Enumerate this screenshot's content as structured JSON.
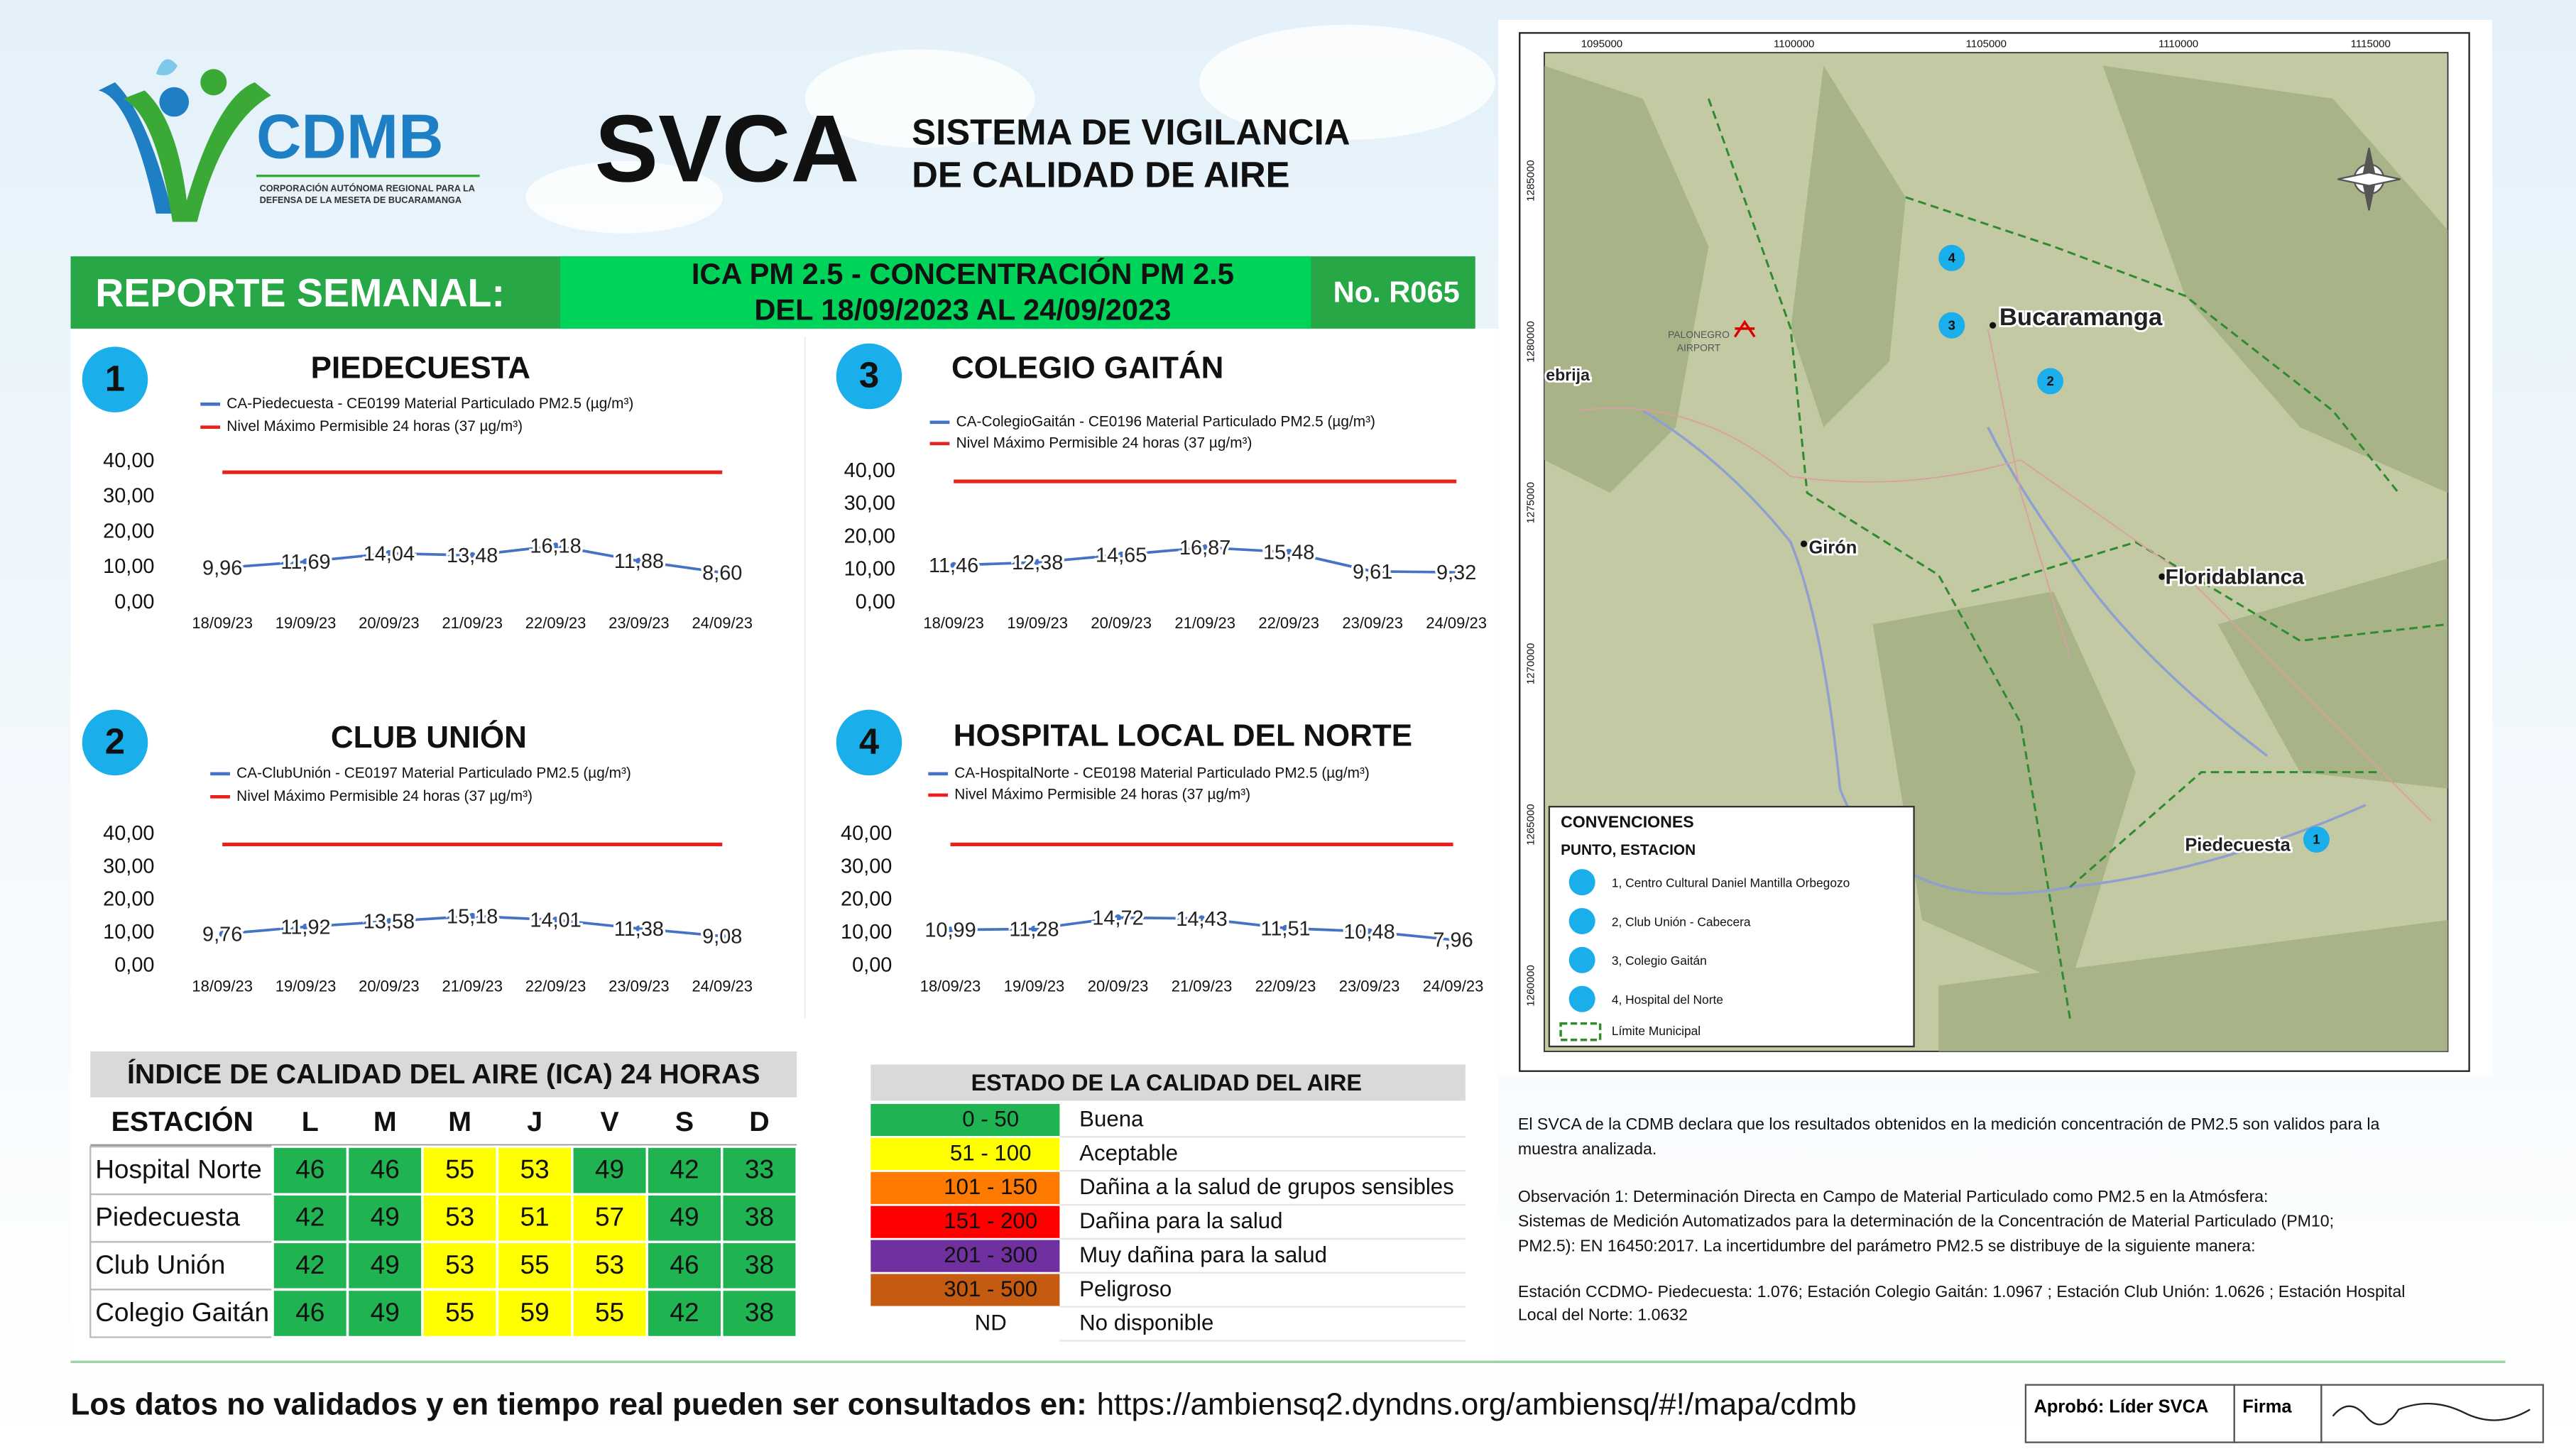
{
  "header": {
    "logo": "CDMB",
    "logo_sub": [
      "CORPORACIÓN AUTÓNOMA REGIONAL PARA LA",
      "DEFENSA DE LA MESETA DE BUCARAMANGA"
    ],
    "acronym": "SVCA",
    "system": [
      "SISTEMA DE VIGILANCIA",
      "DE CALIDAD DE AIRE"
    ],
    "report": "REPORTE SEMANAL:",
    "subject": [
      "ICA PM 2.5 - CONCENTRACIÓN PM 2.5",
      "DEL 18/09/2023 AL 24/09/2023"
    ],
    "number": "No. R065"
  },
  "chart_data": [
    {
      "type": "line",
      "number": "1",
      "title": "PIEDECUESTA",
      "categories": [
        "18/09/23",
        "19/09/23",
        "20/09/23",
        "21/09/23",
        "22/09/23",
        "23/09/23",
        "24/09/23"
      ],
      "series": [
        {
          "name": "CA-Piedecuesta - CE0199 Material Particulado PM2.5 (µg/m³)",
          "color": "#4472c4",
          "values": [
            9.96,
            11.69,
            14.04,
            13.48,
            16.18,
            11.88,
            8.6
          ],
          "value_labels": [
            "9,96",
            "11,69",
            "14,04",
            "13,48",
            "16,18",
            "11,88",
            "8,60"
          ]
        },
        {
          "name": "Nivel Máximo Permisible 24 horas (37 µg/m³)",
          "color": "#e8211b",
          "values": [
            37,
            37,
            37,
            37,
            37,
            37,
            37
          ]
        }
      ],
      "ylim": [
        0,
        40
      ],
      "yticks": [
        {
          "value": 0,
          "label": "0,00"
        },
        {
          "value": 10,
          "label": "10,00"
        },
        {
          "value": 20,
          "label": "20,00"
        },
        {
          "value": 30,
          "label": "30,00"
        },
        {
          "value": 40,
          "label": "40,00"
        }
      ]
    },
    {
      "type": "line",
      "number": "3",
      "title": "COLEGIO GAITÁN",
      "categories": [
        "18/09/23",
        "19/09/23",
        "20/09/23",
        "21/09/23",
        "22/09/23",
        "23/09/23",
        "24/09/23"
      ],
      "series": [
        {
          "name": "CA-ColegioGaitán - CE0196 Material Particulado PM2.5 (µg/m³)",
          "color": "#4472c4",
          "values": [
            11.46,
            12.38,
            14.65,
            16.87,
            15.48,
            9.61,
            9.32
          ],
          "value_labels": [
            "11,46",
            "12,38",
            "14,65",
            "16,87",
            "15,48",
            "9,61",
            "9,32"
          ]
        },
        {
          "name": "Nivel Máximo Permisible 24 horas (37 µg/m³)",
          "color": "#e8211b",
          "values": [
            37,
            37,
            37,
            37,
            37,
            37,
            37
          ]
        }
      ],
      "ylim": [
        0,
        40
      ],
      "yticks": [
        {
          "value": 0,
          "label": "0,00"
        },
        {
          "value": 10,
          "label": "10,00"
        },
        {
          "value": 20,
          "label": "20,00"
        },
        {
          "value": 30,
          "label": "30,00"
        },
        {
          "value": 40,
          "label": "40,00"
        }
      ]
    },
    {
      "type": "line",
      "number": "2",
      "title": "CLUB UNIÓN",
      "categories": [
        "18/09/23",
        "19/09/23",
        "20/09/23",
        "21/09/23",
        "22/09/23",
        "23/09/23",
        "24/09/23"
      ],
      "series": [
        {
          "name": "CA-ClubUnión - CE0197 Material Particulado PM2.5 (µg/m³)",
          "color": "#4472c4",
          "values": [
            9.76,
            11.92,
            13.58,
            15.18,
            14.01,
            11.38,
            9.08
          ],
          "value_labels": [
            "9,76",
            "11,92",
            "13,58",
            "15,18",
            "14,01",
            "11,38",
            "9,08"
          ]
        },
        {
          "name": "Nivel Máximo Permisible 24 horas (37 µg/m³)",
          "color": "#e8211b",
          "values": [
            37,
            37,
            37,
            37,
            37,
            37,
            37
          ]
        }
      ],
      "ylim": [
        0,
        40
      ],
      "yticks": [
        {
          "value": 0,
          "label": "0,00"
        },
        {
          "value": 10,
          "label": "10,00"
        },
        {
          "value": 20,
          "label": "20,00"
        },
        {
          "value": 30,
          "label": "30,00"
        },
        {
          "value": 40,
          "label": "40,00"
        }
      ]
    },
    {
      "type": "line",
      "number": "4",
      "title": "HOSPITAL LOCAL DEL NORTE",
      "categories": [
        "18/09/23",
        "19/09/23",
        "20/09/23",
        "21/09/23",
        "22/09/23",
        "23/09/23",
        "24/09/23"
      ],
      "series": [
        {
          "name": "CA-HospitalNorte - CE0198 Material Particulado PM2.5 (µg/m³)",
          "color": "#4472c4",
          "values": [
            10.99,
            11.28,
            14.72,
            14.43,
            11.51,
            10.48,
            7.96
          ],
          "value_labels": [
            "10,99",
            "11,28",
            "14,72",
            "14,43",
            "11,51",
            "10,48",
            "7,96"
          ]
        },
        {
          "name": "Nivel Máximo Permisible 24 horas (37 µg/m³)",
          "color": "#e8211b",
          "values": [
            37,
            37,
            37,
            37,
            37,
            37,
            37
          ]
        }
      ],
      "ylim": [
        0,
        40
      ],
      "yticks": [
        {
          "value": 0,
          "label": "0,00"
        },
        {
          "value": 10,
          "label": "10,00"
        },
        {
          "value": 20,
          "label": "20,00"
        },
        {
          "value": 30,
          "label": "30,00"
        },
        {
          "value": 40,
          "label": "40,00"
        }
      ]
    }
  ],
  "ica_table": {
    "title": "ÍNDICE DE CALIDAD DEL AIRE (ICA) 24 HORAS",
    "header": [
      "ESTACIÓN",
      "L",
      "M",
      "M",
      "J",
      "V",
      "S",
      "D"
    ],
    "rows": [
      [
        "Hospital Norte",
        46,
        46,
        55,
        53,
        49,
        42,
        33
      ],
      [
        "Piedecuesta",
        42,
        49,
        53,
        51,
        57,
        49,
        38
      ],
      [
        "Club Unión",
        42,
        49,
        53,
        55,
        53,
        46,
        38
      ],
      [
        "Colegio Gaitán",
        46,
        49,
        55,
        59,
        55,
        42,
        38
      ]
    ]
  },
  "estado_table": {
    "title": "ESTADO DE LA CALIDAD DEL AIRE",
    "rows": [
      {
        "range": "0 - 50",
        "label": "Buena",
        "color": "#1fb451"
      },
      {
        "range": "51 - 100",
        "label": "Aceptable",
        "color": "#ffff00"
      },
      {
        "range": "101 - 150",
        "label": "Dañina a la salud de grupos sensibles",
        "color": "#ff7a00"
      },
      {
        "range": "151 - 200",
        "label": "Dañina para la salud",
        "color": "#ff0000"
      },
      {
        "range": "201 - 300",
        "label": "Muy dañina para la salud",
        "color": "#7030a0"
      },
      {
        "range": "301 - 500",
        "label": "Peligroso",
        "color": "#c55a11"
      },
      {
        "range": "ND",
        "label": "No disponible",
        "color": "#ffffff"
      }
    ]
  },
  "map": {
    "xticks": [
      "1095000",
      "1100000",
      "1105000",
      "1110000",
      "1115000"
    ],
    "yticks": [
      "1285000",
      "1280000",
      "1275000",
      "1270000",
      "1265000",
      "1260000"
    ],
    "places": [
      "Bucaramanga",
      "Girón",
      "Floridablanca",
      "Piedecuesta",
      "ebrija"
    ],
    "airport": [
      "PALONEGRO",
      "AIRPORT"
    ],
    "stations": [
      "4",
      "3",
      "2",
      "1"
    ],
    "legend": {
      "title": "CONVENCIONES",
      "subtitle": "PUNTO, ESTACION",
      "items": [
        "1, Centro Cultural Daniel Mantilla Orbegozo",
        "2, Club Unión - Cabecera",
        "3, Colegio Gaitán",
        "4, Hospital del Norte"
      ],
      "border": "Límite Municipal"
    }
  },
  "notes": [
    [
      "El SVCA  de la CDMB declara que los resultados obtenidos en la medición concentración de PM2.5 son validos para la",
      "muestra  analizada."
    ],
    [
      "Observación 1: Determinación Directa en Campo de Material Particulado como PM2.5 en la Atmósfera:",
      "Sistemas de Medición Automatizados para la  determinación de la Concentración de Material Particulado (PM10;",
      "PM2.5): EN 16450:2017. La incertidumbre del parámetro PM2.5 se distribuye de la siguiente manera:"
    ],
    [
      "Estación CCDMO- Piedecuesta: 1.076; Estación Colegio Gaitán: 1.0967 ; Estación Club Unión: 1.0626 ; Estación Hospital",
      "Local del Norte: 1.0632"
    ]
  ],
  "footer": {
    "text": "Los datos no validados y en tiempo real pueden ser consultados en:",
    "url": "https://ambiensq2.dyndns.org/ambiensq/#!/mapa/cdmb",
    "approved": "Aprobó: Líder SVCA",
    "signature": "Firma"
  }
}
